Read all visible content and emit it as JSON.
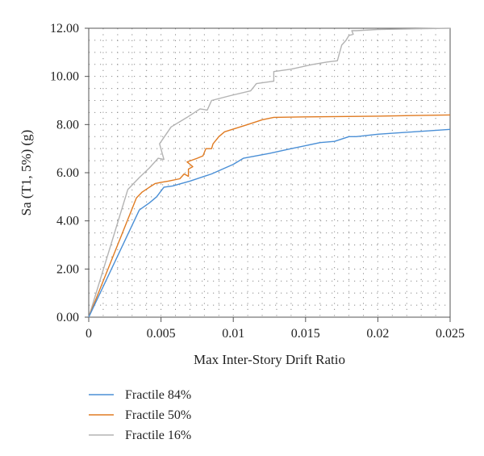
{
  "chart_data": {
    "type": "line",
    "xlabel": "Max Inter-Story Drift Ratio",
    "ylabel": "Sa (T1, 5%) (g)",
    "xlim": [
      0,
      0.025
    ],
    "ylim": [
      0,
      12
    ],
    "grid": "dotted",
    "legend_position": "bottom-left, below plot",
    "x_ticks": [
      {
        "value": 0,
        "label": "0"
      },
      {
        "value": 0.005,
        "label": "0.005"
      },
      {
        "value": 0.01,
        "label": "0.01"
      },
      {
        "value": 0.015,
        "label": "0.015"
      },
      {
        "value": 0.02,
        "label": "0.02"
      },
      {
        "value": 0.025,
        "label": "0.025"
      }
    ],
    "y_ticks": [
      {
        "value": 0,
        "label": "0.00"
      },
      {
        "value": 2,
        "label": "2.00"
      },
      {
        "value": 4,
        "label": "4.00"
      },
      {
        "value": 6,
        "label": "6.00"
      },
      {
        "value": 8,
        "label": "8.00"
      },
      {
        "value": 10,
        "label": "10.00"
      },
      {
        "value": 12,
        "label": "12.00"
      }
    ],
    "series": [
      {
        "name": "Fractile 84%",
        "color": "#4a8fd6",
        "points": [
          [
            0,
            0
          ],
          [
            0.0035,
            4.45
          ],
          [
            0.0042,
            4.75
          ],
          [
            0.0047,
            5.0
          ],
          [
            0.0052,
            5.4
          ],
          [
            0.0058,
            5.45
          ],
          [
            0.007,
            5.65
          ],
          [
            0.0085,
            5.95
          ],
          [
            0.01,
            6.35
          ],
          [
            0.0107,
            6.6
          ],
          [
            0.0125,
            6.8
          ],
          [
            0.014,
            7.0
          ],
          [
            0.016,
            7.25
          ],
          [
            0.017,
            7.3
          ],
          [
            0.018,
            7.5
          ],
          [
            0.0185,
            7.5
          ],
          [
            0.02,
            7.6
          ],
          [
            0.0225,
            7.7
          ],
          [
            0.025,
            7.8
          ]
        ]
      },
      {
        "name": "Fractile 50%",
        "color": "#e07b22",
        "points": [
          [
            0,
            0
          ],
          [
            0.0033,
            4.95
          ],
          [
            0.0037,
            5.2
          ],
          [
            0.0042,
            5.4
          ],
          [
            0.0046,
            5.55
          ],
          [
            0.005,
            5.6
          ],
          [
            0.0055,
            5.65
          ],
          [
            0.0063,
            5.75
          ],
          [
            0.0066,
            5.95
          ],
          [
            0.0069,
            5.85
          ],
          [
            0.0069,
            6.15
          ],
          [
            0.0072,
            6.25
          ],
          [
            0.0068,
            6.45
          ],
          [
            0.0075,
            6.6
          ],
          [
            0.0079,
            6.7
          ],
          [
            0.0081,
            7.0
          ],
          [
            0.0085,
            7.0
          ],
          [
            0.0086,
            7.2
          ],
          [
            0.009,
            7.5
          ],
          [
            0.0094,
            7.7
          ],
          [
            0.011,
            8.0
          ],
          [
            0.012,
            8.2
          ],
          [
            0.0128,
            8.3
          ],
          [
            0.015,
            8.32
          ],
          [
            0.02,
            8.35
          ],
          [
            0.025,
            8.4
          ]
        ]
      },
      {
        "name": "Fractile 16%",
        "color": "#b3b3b3",
        "points": [
          [
            0,
            0
          ],
          [
            0.0027,
            5.3
          ],
          [
            0.0035,
            5.8
          ],
          [
            0.0042,
            6.2
          ],
          [
            0.0048,
            6.6
          ],
          [
            0.0052,
            6.55
          ],
          [
            0.0049,
            7.2
          ],
          [
            0.0057,
            7.9
          ],
          [
            0.0068,
            8.3
          ],
          [
            0.0077,
            8.65
          ],
          [
            0.0082,
            8.6
          ],
          [
            0.0085,
            9.0
          ],
          [
            0.0098,
            9.2
          ],
          [
            0.0112,
            9.4
          ],
          [
            0.0116,
            9.7
          ],
          [
            0.0128,
            9.8
          ],
          [
            0.0128,
            10.2
          ],
          [
            0.014,
            10.3
          ],
          [
            0.0155,
            10.5
          ],
          [
            0.0165,
            10.6
          ],
          [
            0.0172,
            10.65
          ],
          [
            0.0175,
            11.3
          ],
          [
            0.0178,
            11.5
          ],
          [
            0.018,
            11.7
          ],
          [
            0.0183,
            11.75
          ],
          [
            0.0182,
            11.9
          ],
          [
            0.0185,
            11.9
          ],
          [
            0.02,
            11.95
          ],
          [
            0.025,
            12.0
          ]
        ]
      }
    ]
  }
}
